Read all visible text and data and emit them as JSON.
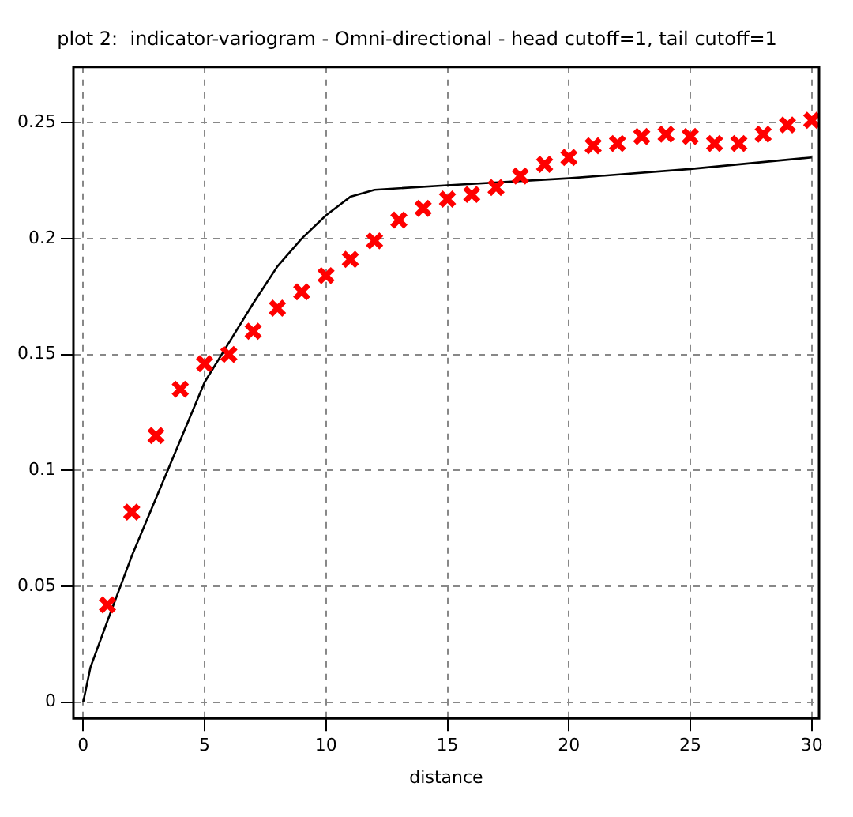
{
  "chart_data": {
    "type": "scatter",
    "title": "plot 2:  indicator-variogram - Omni-directional - head cutoff=1, tail cutoff=1",
    "xlabel": "distance",
    "xlim": [
      -0.4,
      30.3
    ],
    "ylim": [
      -0.007,
      0.274
    ],
    "xticks": [
      0,
      5,
      10,
      15,
      20,
      25,
      30
    ],
    "yticks": [
      0,
      0.05,
      0.1,
      0.15,
      0.2,
      0.25
    ],
    "grid": true,
    "legend": false,
    "series": [
      {
        "type": "scatter",
        "marker": "cross",
        "color": "#ff0000",
        "x": [
          1,
          2,
          3,
          4,
          5,
          6,
          7,
          8,
          9,
          10,
          11,
          12,
          13,
          14,
          15,
          16,
          17,
          18,
          19,
          20,
          21,
          22,
          23,
          24,
          25,
          26,
          27,
          28,
          29,
          30
        ],
        "values": [
          0.042,
          0.082,
          0.115,
          0.135,
          0.146,
          0.15,
          0.16,
          0.17,
          0.177,
          0.184,
          0.191,
          0.199,
          0.208,
          0.213,
          0.217,
          0.219,
          0.222,
          0.227,
          0.232,
          0.235,
          0.24,
          0.241,
          0.244,
          0.245,
          0.244,
          0.241,
          0.241,
          0.245,
          0.249,
          0.251
        ]
      },
      {
        "type": "line",
        "marker": "none",
        "color": "#000000",
        "x": [
          0,
          0.3,
          1,
          2,
          3,
          4,
          5,
          6,
          7,
          8,
          9,
          10,
          11,
          12,
          15,
          20,
          25,
          30
        ],
        "values": [
          0,
          0.015,
          0.035,
          0.063,
          0.088,
          0.113,
          0.138,
          0.155,
          0.172,
          0.188,
          0.2,
          0.21,
          0.218,
          0.221,
          0.223,
          0.226,
          0.23,
          0.235
        ]
      }
    ]
  }
}
